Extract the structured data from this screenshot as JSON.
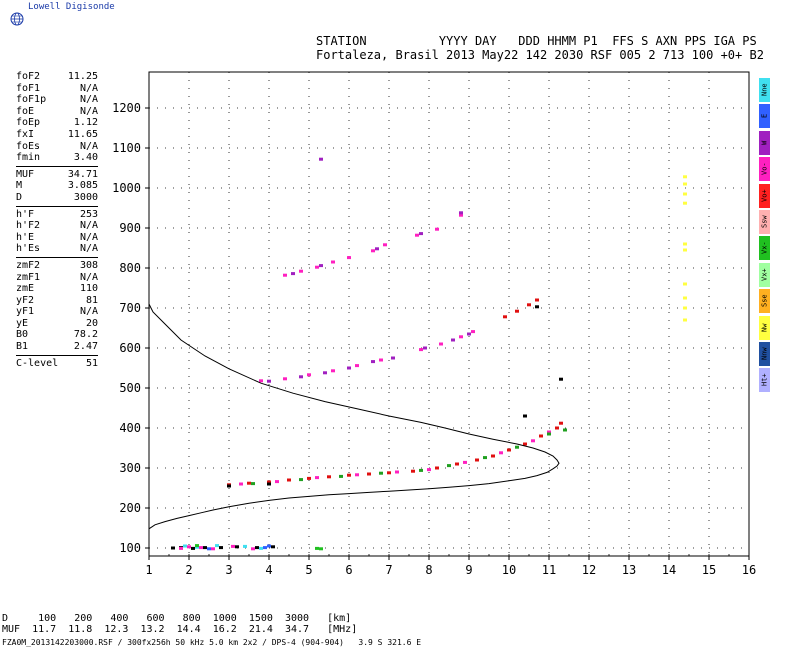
{
  "logo": {
    "text": "Lowell Digisonde",
    "icon": "globe-icon"
  },
  "header": {
    "line1": "STATION          YYYY DAY   DDD HHMM P1  FFS S AXN PPS IGA PS",
    "line2": "Fortaleza, Brasil 2013 May22 142 2030 RSF 005 2 713 100 +0+ B2"
  },
  "side_groups": [
    [
      {
        "k": "foF2",
        "v": "11.25"
      },
      {
        "k": "foF1",
        "v": "N/A"
      },
      {
        "k": "foF1p",
        "v": "N/A"
      },
      {
        "k": "foE",
        "v": "N/A"
      },
      {
        "k": "foEp",
        "v": "1.12"
      },
      {
        "k": "fxI",
        "v": "11.65"
      },
      {
        "k": "foEs",
        "v": "N/A"
      },
      {
        "k": "fmin",
        "v": "3.40"
      }
    ],
    [
      {
        "k": "MUF",
        "v": "34.71"
      },
      {
        "k": "M",
        "v": "3.085"
      },
      {
        "k": "D",
        "v": "3000"
      }
    ],
    [
      {
        "k": "h'F",
        "v": "253"
      },
      {
        "k": "h'F2",
        "v": "N/A"
      },
      {
        "k": "h'E",
        "v": "N/A"
      },
      {
        "k": "h'Es",
        "v": "N/A"
      }
    ],
    [
      {
        "k": "zmF2",
        "v": "308"
      },
      {
        "k": "zmF1",
        "v": "N/A"
      },
      {
        "k": "zmE",
        "v": "110"
      },
      {
        "k": "yF2",
        "v": "81"
      },
      {
        "k": "yF1",
        "v": "N/A"
      },
      {
        "k": "yE",
        "v": "20"
      },
      {
        "k": "B0",
        "v": "78.2"
      },
      {
        "k": "B1",
        "v": "2.47"
      }
    ],
    [
      {
        "k": "C-level",
        "v": "51"
      }
    ]
  ],
  "legend": [
    {
      "label": "Nne",
      "color": "#40e0f0"
    },
    {
      "label": "E",
      "color": "#3060ff"
    },
    {
      "label": "W",
      "color": "#a020c0"
    },
    {
      "label": "Vo-",
      "color": "#ff20c0"
    },
    {
      "label": "Vo+",
      "color": "#ff2020"
    },
    {
      "label": "Ssw",
      "color": "#ffb0b0"
    },
    {
      "label": "Vx-",
      "color": "#20c020"
    },
    {
      "label": "Vx+",
      "color": "#a0ffa0"
    },
    {
      "label": "Sse",
      "color": "#ffb020"
    },
    {
      "label": "Nw",
      "color": "#ffff40"
    },
    {
      "label": "Nnw",
      "color": "#2050a0"
    },
    {
      "label": "Ht+",
      "color": "#b0b0ff"
    }
  ],
  "footer": {
    "line1": "D     100   200   400   600   800  1000  1500  3000   [km]",
    "line2": "MUF  11.7  11.8  12.3  13.2  14.4  16.2  21.4  34.7   [MHz]",
    "line3": "FZA0M_2013142203000.RSF / 300fx256h 50 kHz 5.0 km 2x2 / DPS-4 (904-904)   3.9 S 321.6 E"
  },
  "chart_data": {
    "type": "scatter",
    "xlim": [
      1,
      16
    ],
    "ylim": [
      80,
      1290
    ],
    "x_ticks": [
      "1",
      "2",
      "3",
      "4",
      "5",
      "6",
      "7",
      "8",
      "9",
      "10",
      "11",
      "12",
      "13",
      "14",
      "15",
      "16"
    ],
    "y_ticks": [
      "100",
      "200",
      "300",
      "400",
      "500",
      "600",
      "700",
      "800",
      "900",
      "1000",
      "1100",
      "1200"
    ],
    "grid": true,
    "legend_position": "right",
    "series": [
      {
        "color": "#e01010",
        "points": [
          [
            3.0,
            258
          ],
          [
            3.5,
            262
          ],
          [
            4.0,
            265
          ],
          [
            4.5,
            270
          ],
          [
            5.0,
            274
          ],
          [
            5.5,
            278
          ],
          [
            6.0,
            282
          ],
          [
            6.5,
            285
          ],
          [
            7.0,
            288
          ],
          [
            7.6,
            292
          ],
          [
            8.2,
            300
          ],
          [
            8.7,
            310
          ],
          [
            9.2,
            320
          ],
          [
            9.6,
            330
          ],
          [
            10.0,
            345
          ],
          [
            10.4,
            360
          ],
          [
            10.8,
            380
          ],
          [
            11.2,
            400
          ],
          [
            11.3,
            412
          ]
        ]
      },
      {
        "color": "#ff20c0",
        "points": [
          [
            3.3,
            260
          ],
          [
            4.2,
            266
          ],
          [
            5.2,
            276
          ],
          [
            6.2,
            283
          ],
          [
            7.2,
            290
          ],
          [
            8.0,
            296
          ],
          [
            8.9,
            314
          ],
          [
            9.8,
            338
          ],
          [
            10.6,
            368
          ],
          [
            11.0,
            390
          ]
        ]
      },
      {
        "color": "#20a020",
        "points": [
          [
            3.6,
            261
          ],
          [
            4.8,
            271
          ],
          [
            5.8,
            279
          ],
          [
            6.8,
            287
          ],
          [
            7.8,
            294
          ],
          [
            8.5,
            306
          ],
          [
            9.4,
            326
          ],
          [
            10.2,
            352
          ],
          [
            11.0,
            385
          ],
          [
            11.4,
            395
          ]
        ]
      },
      {
        "color": "#ff20c0",
        "points": [
          [
            3.8,
            518
          ],
          [
            4.4,
            523
          ],
          [
            5.0,
            533
          ],
          [
            5.6,
            543
          ],
          [
            6.2,
            556
          ],
          [
            6.8,
            570
          ],
          [
            7.8,
            596
          ],
          [
            8.3,
            610
          ],
          [
            8.8,
            628
          ],
          [
            9.1,
            641
          ]
        ]
      },
      {
        "color": "#a020c0",
        "points": [
          [
            4.0,
            517
          ],
          [
            4.8,
            528
          ],
          [
            5.4,
            538
          ],
          [
            6.0,
            550
          ],
          [
            6.6,
            566
          ],
          [
            7.1,
            575
          ],
          [
            7.9,
            600
          ],
          [
            8.6,
            620
          ],
          [
            9.0,
            635
          ]
        ]
      },
      {
        "color": "#e01010",
        "points": [
          [
            9.9,
            678
          ],
          [
            10.2,
            692
          ],
          [
            10.5,
            708
          ],
          [
            10.7,
            720
          ]
        ]
      },
      {
        "color": "#ff20c0",
        "points": [
          [
            4.4,
            782
          ],
          [
            4.8,
            792
          ],
          [
            5.2,
            802
          ],
          [
            5.6,
            815
          ],
          [
            6.0,
            826
          ],
          [
            6.6,
            843
          ],
          [
            6.9,
            858
          ],
          [
            7.7,
            882
          ],
          [
            8.2,
            897
          ],
          [
            8.8,
            932
          ]
        ]
      },
      {
        "color": "#a020c0",
        "points": [
          [
            4.6,
            786
          ],
          [
            5.3,
            806
          ],
          [
            6.7,
            848
          ],
          [
            7.8,
            886
          ],
          [
            8.8,
            938
          ],
          [
            5.3,
            1072
          ]
        ]
      },
      {
        "color": "#ffff40",
        "points": [
          [
            14.4,
            962
          ],
          [
            14.4,
            985
          ],
          [
            14.4,
            1010
          ],
          [
            14.4,
            1028
          ],
          [
            14.4,
            845
          ],
          [
            14.4,
            860
          ],
          [
            14.4,
            760
          ],
          [
            14.4,
            725
          ],
          [
            14.4,
            700
          ],
          [
            14.4,
            670
          ]
        ]
      },
      {
        "color": "#000000",
        "points": [
          [
            1.6,
            100
          ],
          [
            1.8,
            101
          ],
          [
            2.1,
            99
          ],
          [
            2.4,
            101
          ],
          [
            2.8,
            101
          ],
          [
            3.2,
            103
          ],
          [
            3.7,
            101
          ],
          [
            4.1,
            103
          ],
          [
            3.0,
            255
          ],
          [
            4.0,
            260
          ],
          [
            10.4,
            430
          ],
          [
            11.3,
            522
          ],
          [
            10.7,
            703
          ]
        ]
      },
      {
        "color": "#ff20c0",
        "points": [
          [
            1.8,
            99
          ],
          [
            2.0,
            103
          ],
          [
            2.3,
            101
          ],
          [
            2.6,
            98
          ],
          [
            3.1,
            104
          ],
          [
            3.6,
            98
          ]
        ]
      },
      {
        "color": "#40e0f0",
        "points": [
          [
            1.9,
            105
          ],
          [
            2.2,
            102
          ],
          [
            2.7,
            106
          ],
          [
            3.4,
            104
          ],
          [
            3.8,
            99
          ]
        ]
      },
      {
        "color": "#3060ff",
        "points": [
          [
            2.5,
            98
          ],
          [
            3.9,
            101
          ],
          [
            4.0,
            105
          ]
        ]
      },
      {
        "color": "#20c020",
        "points": [
          [
            5.2,
            99
          ],
          [
            5.3,
            98
          ],
          [
            2.2,
            106
          ]
        ]
      }
    ],
    "profile": {
      "x": [
        1.0,
        1.15,
        1.4,
        1.7,
        2.0,
        2.3,
        2.6,
        3.0,
        3.5,
        4.0,
        4.5,
        5.0,
        5.5,
        6.0,
        6.5,
        7.0,
        7.5,
        8.0,
        8.5,
        9.0,
        9.5,
        10.0,
        10.4,
        10.7,
        10.95,
        11.1,
        11.2,
        11.25,
        11.2,
        11.1,
        10.9,
        10.6,
        10.2,
        9.6,
        9.0,
        8.4,
        7.8,
        7.0,
        6.2,
        5.4,
        4.6,
        3.8,
        3.0,
        2.4,
        1.8,
        1.4,
        1.1,
        1.0
      ],
      "y": [
        148,
        158,
        166,
        174,
        181,
        188,
        195,
        203,
        212,
        219,
        225,
        229,
        233,
        236,
        239,
        242,
        245,
        248,
        252,
        256,
        261,
        268,
        274,
        281,
        289,
        298,
        305,
        312,
        320,
        330,
        340,
        350,
        360,
        372,
        385,
        400,
        414,
        430,
        448,
        466,
        487,
        512,
        548,
        580,
        620,
        660,
        690,
        710
      ]
    }
  }
}
